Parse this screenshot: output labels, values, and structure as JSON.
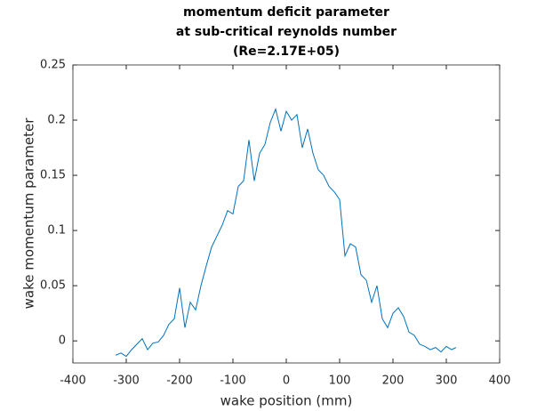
{
  "chart_data": {
    "type": "line",
    "title": [
      "momentum deficit parameter",
      "at sub-critical reynolds number",
      "(Re=2.17E+05)"
    ],
    "x_label": "wake position (mm)",
    "y_label": "wake momentum parameter",
    "x": [
      -320,
      -310,
      -300,
      -290,
      -280,
      -270,
      -260,
      -250,
      -240,
      -230,
      -220,
      -210,
      -200,
      -190,
      -180,
      -170,
      -160,
      -150,
      -140,
      -130,
      -120,
      -110,
      -100,
      -90,
      -80,
      -70,
      -60,
      -50,
      -40,
      -30,
      -20,
      -10,
      0,
      10,
      20,
      30,
      40,
      50,
      60,
      70,
      80,
      90,
      100,
      110,
      120,
      130,
      140,
      150,
      160,
      170,
      180,
      190,
      200,
      210,
      220,
      230,
      240,
      250,
      260,
      270,
      280,
      290,
      300,
      310,
      318
    ],
    "values": [
      -0.013,
      -0.011,
      -0.014,
      -0.008,
      -0.003,
      0.002,
      -0.008,
      -0.002,
      -0.001,
      0.005,
      0.015,
      0.02,
      0.048,
      0.012,
      0.035,
      0.028,
      0.05,
      0.068,
      0.085,
      0.095,
      0.105,
      0.118,
      0.115,
      0.14,
      0.145,
      0.182,
      0.145,
      0.17,
      0.178,
      0.198,
      0.21,
      0.19,
      0.208,
      0.2,
      0.205,
      0.175,
      0.192,
      0.17,
      0.155,
      0.15,
      0.14,
      0.135,
      0.128,
      0.077,
      0.088,
      0.085,
      0.06,
      0.055,
      0.035,
      0.05,
      0.02,
      0.012,
      0.025,
      0.03,
      0.022,
      0.008,
      0.005,
      -0.003,
      -0.005,
      -0.008,
      -0.006,
      -0.01,
      -0.005,
      -0.008,
      -0.006
    ],
    "color": "#0072bd",
    "xlim": [
      -400,
      400
    ],
    "xticks": [
      -400,
      -300,
      -200,
      -100,
      0,
      100,
      200,
      300,
      400
    ],
    "ylim": [
      -0.02,
      0.25
    ],
    "yticks": [
      0,
      0.05,
      0.1,
      0.15,
      0.2,
      0.25
    ],
    "grid": false
  }
}
